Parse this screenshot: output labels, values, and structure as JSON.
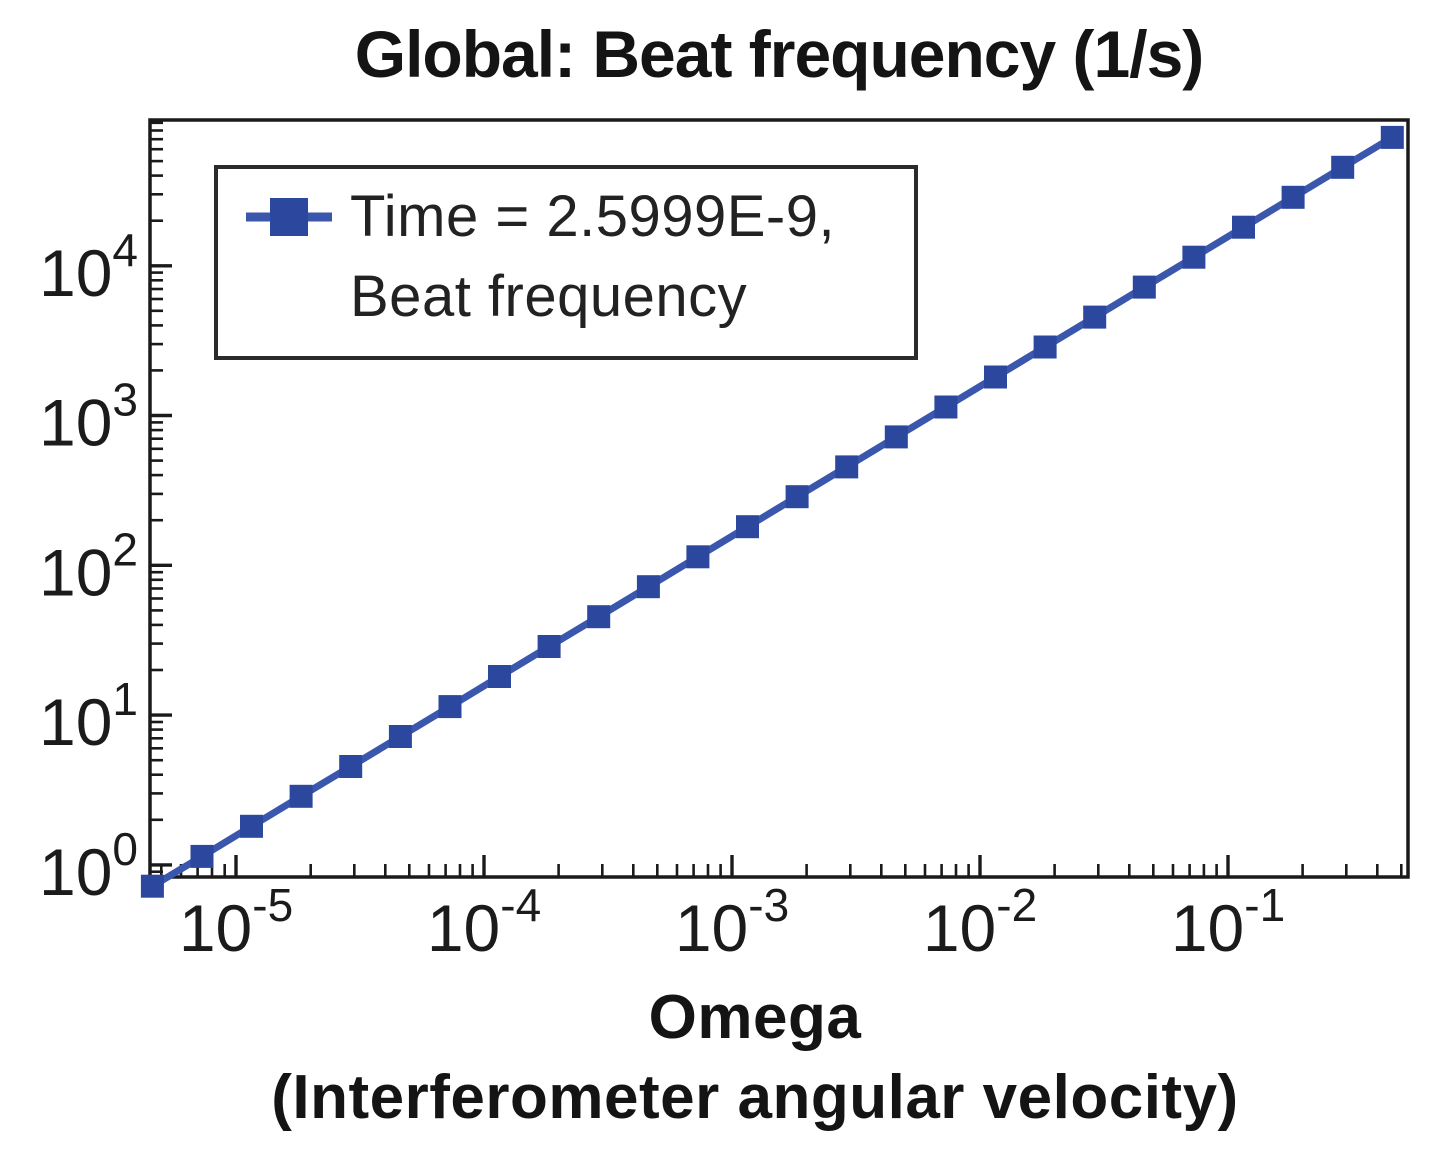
{
  "figure": {
    "title": "Global: Beat frequency (1/s)",
    "xlabel_line1": "Omega",
    "xlabel_line2": "(Interferometer angular velocity)",
    "legend": {
      "line1": "Time = 2.5999E-9,",
      "line2": "Beat frequency"
    }
  },
  "colors": {
    "background": "#ffffff",
    "axis": "#1a1a1a",
    "text": "#1b1b1b",
    "legend_border": "#2b2b2b",
    "series_line": "#3a57ad",
    "series_marker": "#2b479e"
  },
  "chart_data": {
    "type": "line",
    "title": "Global: Beat frequency (1/s)",
    "xlabel": "Omega (Interferometer angular velocity)",
    "ylabel": "Beat frequency (1/s)",
    "x_scale": "log",
    "y_scale": "log",
    "grid": false,
    "legend_position": "top-left",
    "legend_entries": [
      "Time = 2.5999E-9, Beat frequency"
    ],
    "marker": "square",
    "xlim": [
      4.5e-06,
      0.532
    ],
    "ylim": [
      0.83,
      94000
    ],
    "x_tick_exponents": [
      -5,
      -4,
      -3,
      -2,
      -1
    ],
    "y_tick_exponents": [
      0,
      1,
      2,
      3,
      4
    ],
    "series": [
      {
        "name": "Time = 2.5999E-9, Beat frequency",
        "x": [
          4.6e-06,
          7.29e-06,
          1.155e-05,
          1.831e-05,
          2.902e-05,
          4.6e-05,
          7.29e-05,
          0.0001155,
          0.0001831,
          0.0002902,
          0.00046,
          0.000729,
          0.001155,
          0.001831,
          0.002902,
          0.0046,
          0.00729,
          0.01155,
          0.01831,
          0.02902,
          0.046,
          0.0729,
          0.1155,
          0.1831,
          0.2902,
          0.46
        ],
        "y": [
          0.72,
          1.14,
          1.81,
          2.87,
          4.54,
          7.2,
          11.4,
          18.1,
          28.7,
          45.4,
          72.0,
          114,
          181,
          287,
          454,
          720,
          1141,
          1808,
          2866,
          4542,
          7199,
          11410,
          18080,
          28660,
          45420,
          71990
        ]
      }
    ]
  }
}
